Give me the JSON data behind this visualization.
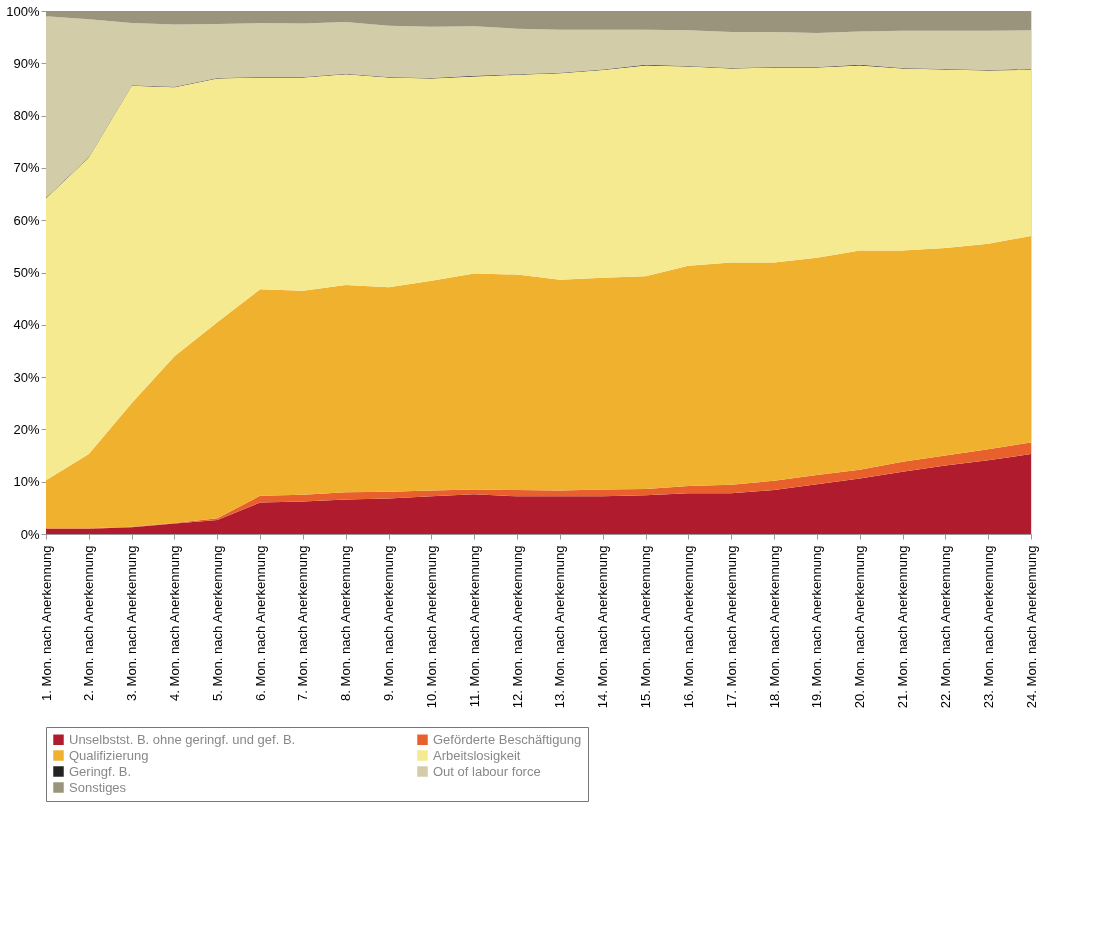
{
  "chart_data": {
    "type": "area",
    "stacked": true,
    "categories": [
      "1. Mon. nach Anerkennung",
      "2. Mon. nach Anerkennung",
      "3. Mon. nach Anerkennung",
      "4. Mon. nach Anerkennung",
      "5. Mon. nach Anerkennung",
      "6. Mon. nach Anerkennung",
      "7. Mon. nach Anerkennung",
      "8. Mon. nach Anerkennung",
      "9. Mon. nach Anerkennung",
      "10. Mon. nach Anerkennung",
      "11. Mon. nach Anerkennung",
      "12. Mon. nach Anerkennung",
      "13. Mon. nach Anerkennung",
      "14. Mon. nach Anerkennung",
      "15. Mon. nach Anerkennung",
      "16. Mon. nach Anerkennung",
      "17. Mon. nach Anerkennung",
      "18. Mon. nach Anerkennung",
      "19. Mon. nach Anerkennung",
      "20. Mon. nach Anerkennung",
      "21. Mon. nach Anerkennung",
      "22. Mon. nach Anerkennung",
      "23. Mon. nach Anerkennung",
      "24. Mon. nach Anerkennung"
    ],
    "series": [
      {
        "name": "Unselbstst. B. ohne geringf. und gef. B.",
        "color": "#b01c2e",
        "values": [
          1.0,
          1.0,
          1.3,
          2.0,
          2.7,
          6.0,
          6.2,
          6.6,
          6.8,
          7.2,
          7.6,
          7.2,
          7.2,
          7.2,
          7.4,
          7.8,
          7.8,
          8.4,
          9.5,
          10.6,
          11.9,
          13.1,
          14.1,
          15.3
        ]
      },
      {
        "name": "Geförderte Beschäftigung",
        "color": "#e8612c",
        "values": [
          0.1,
          0.1,
          0.1,
          0.1,
          0.3,
          1.3,
          1.3,
          1.4,
          1.3,
          1.1,
          0.9,
          1.2,
          1.1,
          1.3,
          1.2,
          1.4,
          1.6,
          1.8,
          1.8,
          1.7,
          1.9,
          1.9,
          2.1,
          2.2
        ]
      },
      {
        "name": " Qualifizierung",
        "color": "#f0b12e",
        "values": [
          9.2,
          14.2,
          23.6,
          31.9,
          37.5,
          39.5,
          39.0,
          39.6,
          39.1,
          40.1,
          41.3,
          41.2,
          40.3,
          40.5,
          40.7,
          42.1,
          42.5,
          41.7,
          41.5,
          41.9,
          40.4,
          39.7,
          39.3,
          39.5
        ]
      },
      {
        "name": "Arbeitslosigkeit",
        "color": "#f6ea90",
        "values": [
          53.9,
          56.7,
          60.7,
          51.4,
          46.6,
          40.5,
          40.8,
          40.3,
          40.1,
          38.7,
          37.7,
          38.2,
          39.5,
          39.7,
          40.3,
          38.1,
          37.1,
          37.3,
          36.4,
          35.4,
          34.8,
          34.1,
          33.1,
          31.8
        ]
      },
      {
        "name": "Geringf. B.",
        "color": "#222222",
        "values": [
          0.1,
          0.1,
          0.1,
          0.1,
          0.1,
          0.1,
          0.1,
          0.1,
          0.1,
          0.1,
          0.1,
          0.1,
          0.1,
          0.1,
          0.1,
          0.1,
          0.1,
          0.1,
          0.1,
          0.1,
          0.1,
          0.1,
          0.1,
          0.1
        ]
      },
      {
        "name": "Out of labour force",
        "color": "#d2cca8",
        "values": [
          34.7,
          26.3,
          11.9,
          11.9,
          10.3,
          10.3,
          10.2,
          9.9,
          9.8,
          9.8,
          9.5,
          8.7,
          8.2,
          7.6,
          6.7,
          6.8,
          6.9,
          6.7,
          6.5,
          6.4,
          7.1,
          7.3,
          7.5,
          7.4
        ]
      },
      {
        "name": "Sonstiges",
        "color": "#9b947c",
        "values": [
          1.0,
          1.6,
          2.3,
          2.6,
          2.5,
          2.3,
          2.4,
          2.1,
          2.8,
          3.0,
          2.9,
          3.4,
          3.6,
          3.6,
          3.6,
          3.7,
          4.0,
          4.0,
          4.2,
          3.9,
          3.8,
          3.8,
          3.8,
          3.7
        ]
      }
    ],
    "ylim": [
      0,
      100
    ],
    "yticks": [
      {
        "value": 0,
        "label": "0%"
      },
      {
        "value": 10,
        "label": "10%"
      },
      {
        "value": 20,
        "label": "20%"
      },
      {
        "value": 30,
        "label": "30%"
      },
      {
        "value": 40,
        "label": "40%"
      },
      {
        "value": 50,
        "label": "50%"
      },
      {
        "value": 60,
        "label": "60%"
      },
      {
        "value": 70,
        "label": "70%"
      },
      {
        "value": 80,
        "label": "80%"
      },
      {
        "value": 90,
        "label": "90%"
      },
      {
        "value": 100,
        "label": "100%"
      }
    ],
    "grid": false,
    "legend": "bottom"
  }
}
